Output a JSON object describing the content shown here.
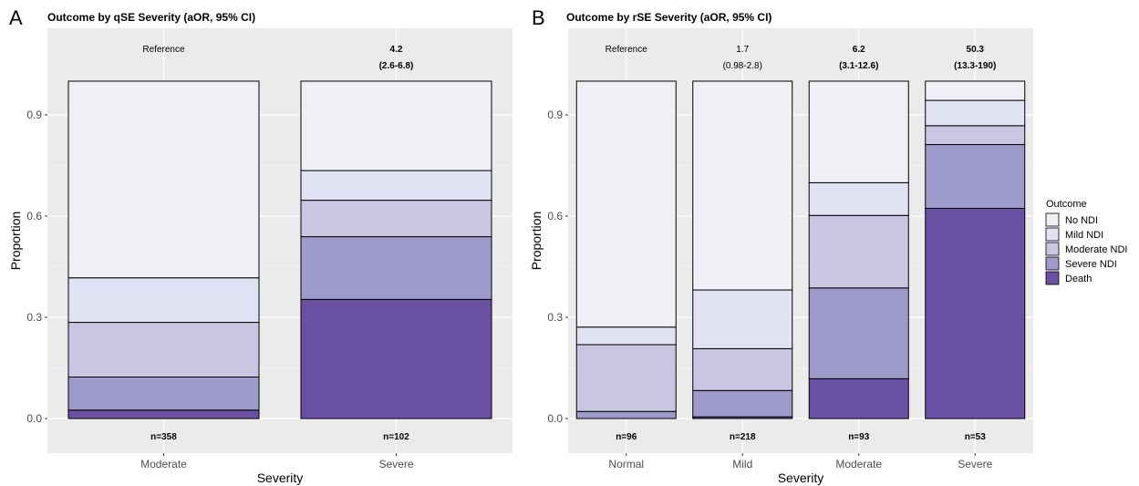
{
  "colors": {
    "panel_bg": "#ebebeb",
    "grid": "#ffffff",
    "No NDI": "#efeff6",
    "Mild NDI": "#e2e2f5",
    "Moderate NDI": "#c8c6e1",
    "Severe NDI": "#9e9ac9",
    "Death": "#6a51a3"
  },
  "chart_data": [
    {
      "type": "bar",
      "stacked": true,
      "panel_letter": "A",
      "title": "Outcome by qSE Severity (aOR, 95% CI)",
      "xlabel": "Severity",
      "ylabel": "Proportion",
      "ylim": [
        0,
        1
      ],
      "yticks": [
        "0.0",
        "0.3",
        "0.6",
        "0.9"
      ],
      "grid": true,
      "categories": [
        "Moderate",
        "Severe"
      ],
      "series": [
        {
          "name": "Death",
          "values": [
            0.025,
            0.353
          ]
        },
        {
          "name": "Severe NDI",
          "values": [
            0.098,
            0.186
          ]
        },
        {
          "name": "Moderate NDI",
          "values": [
            0.162,
            0.108
          ]
        },
        {
          "name": "Mild NDI",
          "values": [
            0.132,
            0.088
          ]
        },
        {
          "name": "No NDI",
          "values": [
            0.583,
            0.265
          ]
        }
      ],
      "top_annotations": [
        {
          "line1": "Reference",
          "line2": "",
          "bold": false
        },
        {
          "line1": "4.2",
          "line2": "(2.6-6.8)",
          "bold": true
        }
      ],
      "n_labels": [
        "n=358",
        "n=102"
      ]
    },
    {
      "type": "bar",
      "stacked": true,
      "panel_letter": "B",
      "title": "Outcome by rSE Severity (aOR, 95% CI)",
      "xlabel": "Severity",
      "ylabel": "Proportion",
      "ylim": [
        0,
        1
      ],
      "yticks": [
        "0.0",
        "0.3",
        "0.6",
        "0.9"
      ],
      "grid": true,
      "categories": [
        "Normal",
        "Mild",
        "Moderate",
        "Severe"
      ],
      "series": [
        {
          "name": "Death",
          "values": [
            0.0,
            0.005,
            0.118,
            0.623
          ]
        },
        {
          "name": "Severe NDI",
          "values": [
            0.021,
            0.078,
            0.269,
            0.189
          ]
        },
        {
          "name": "Moderate NDI",
          "values": [
            0.198,
            0.124,
            0.215,
            0.056
          ]
        },
        {
          "name": "Mild NDI",
          "values": [
            0.052,
            0.174,
            0.097,
            0.075
          ]
        },
        {
          "name": "No NDI",
          "values": [
            0.729,
            0.619,
            0.301,
            0.057
          ]
        }
      ],
      "top_annotations": [
        {
          "line1": "Reference",
          "line2": "",
          "bold": false
        },
        {
          "line1": "1.7",
          "line2": "(0.98-2.8)",
          "bold": false
        },
        {
          "line1": "6.2",
          "line2": "(3.1-12.6)",
          "bold": true
        },
        {
          "line1": "50.3",
          "line2": "(13.3-190)",
          "bold": true
        }
      ],
      "n_labels": [
        "n=96",
        "n=218",
        "n=93",
        "n=53"
      ]
    }
  ],
  "legend": {
    "title": "Outcome",
    "position": "right",
    "items": [
      "No NDI",
      "Mild NDI",
      "Moderate NDI",
      "Severe NDI",
      "Death"
    ]
  }
}
